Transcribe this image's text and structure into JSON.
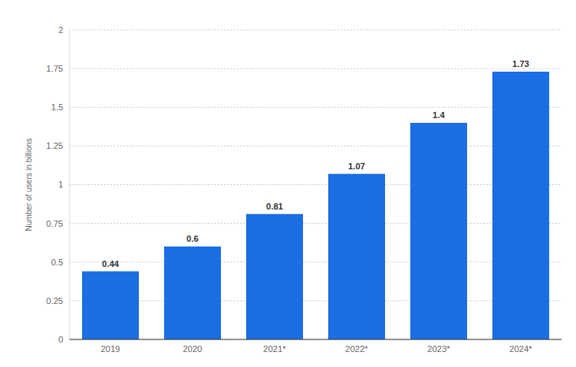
{
  "chart_data": {
    "type": "bar",
    "y_label": "Number of users in billions",
    "categories": [
      "2019",
      "2020",
      "2021*",
      "2022*",
      "2023*",
      "2024*"
    ],
    "values": [
      0.44,
      0.6,
      0.81,
      1.07,
      1.4,
      1.73
    ],
    "color": "#1b6ee3",
    "ylim": [
      0,
      2
    ],
    "yticks": [
      0,
      0.25,
      0.5,
      0.75,
      1,
      1.25,
      1.5,
      1.75,
      2
    ],
    "grid": true,
    "data_labels": true
  }
}
